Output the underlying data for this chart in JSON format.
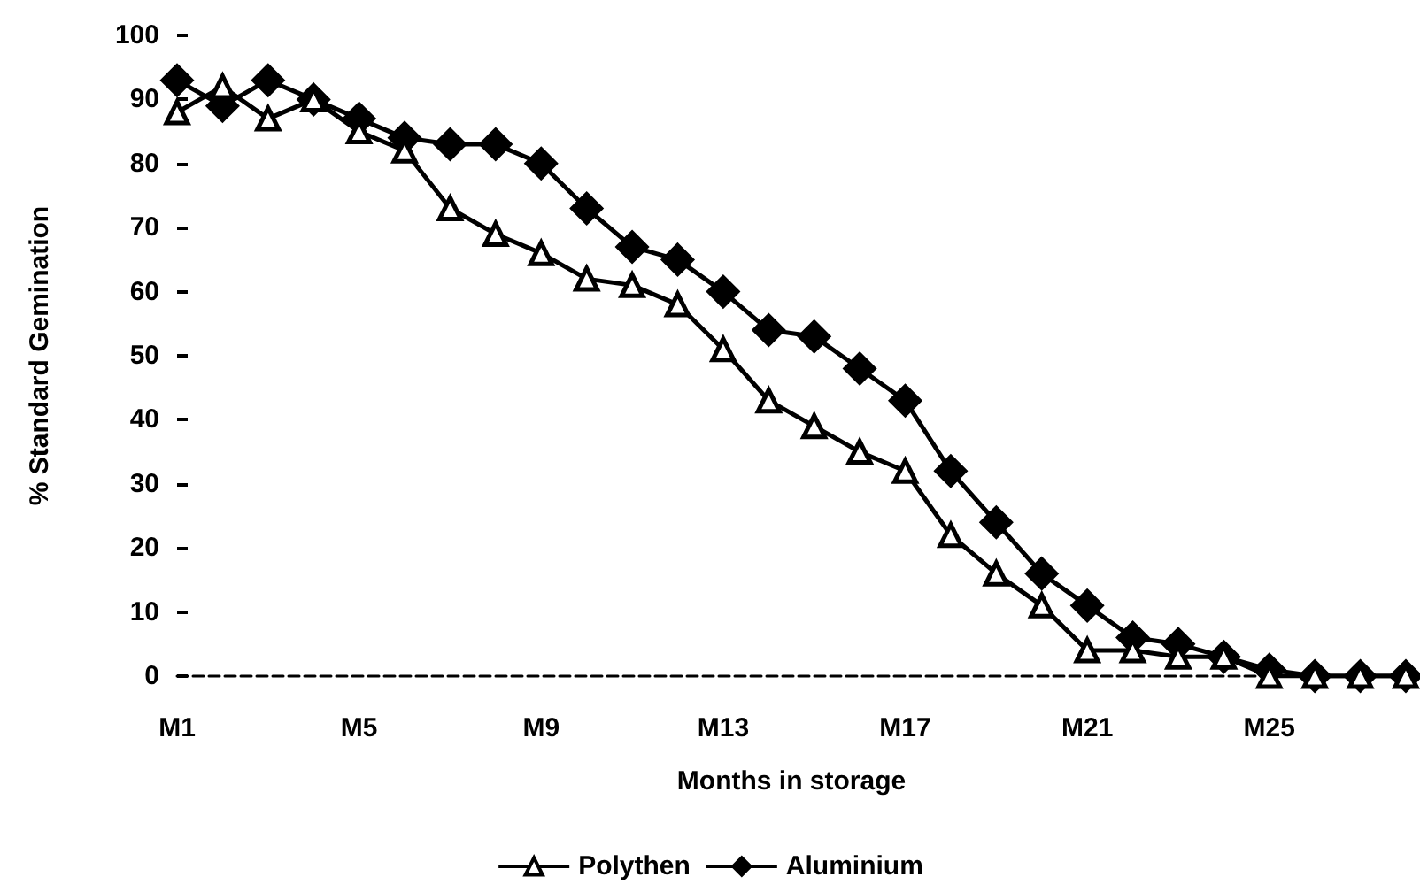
{
  "chart_data": {
    "type": "line",
    "xlabel": "Months in storage",
    "ylabel": "% Standard Gemination",
    "categories": [
      "M1",
      null,
      null,
      null,
      "M5",
      null,
      null,
      null,
      "M9",
      null,
      null,
      null,
      "M13",
      null,
      null,
      null,
      "M17",
      null,
      null,
      null,
      "M21",
      null,
      null,
      null,
      "M25",
      null,
      null,
      null
    ],
    "series": [
      {
        "name": "Polythen",
        "color": "#000000",
        "marker": "triangle",
        "values": [
          88,
          92,
          87,
          90,
          85,
          82,
          73,
          69,
          66,
          62,
          61,
          58,
          51,
          43,
          39,
          35,
          32,
          22,
          16,
          11,
          4,
          4,
          3,
          3,
          0,
          0,
          0,
          0
        ]
      },
      {
        "name": "Aluminium",
        "color": "#000000",
        "marker": "diamond",
        "values": [
          93,
          89,
          93,
          90,
          87,
          84,
          83,
          83,
          80,
          73,
          67,
          65,
          60,
          54,
          53,
          48,
          43,
          32,
          24,
          16,
          11,
          6,
          5,
          3,
          1,
          0,
          0,
          0
        ]
      }
    ],
    "ylim": [
      0,
      100
    ],
    "yticks": [
      0,
      10,
      20,
      30,
      40,
      50,
      60,
      70,
      80,
      90,
      100
    ],
    "grid": false,
    "legend": "bottom"
  }
}
